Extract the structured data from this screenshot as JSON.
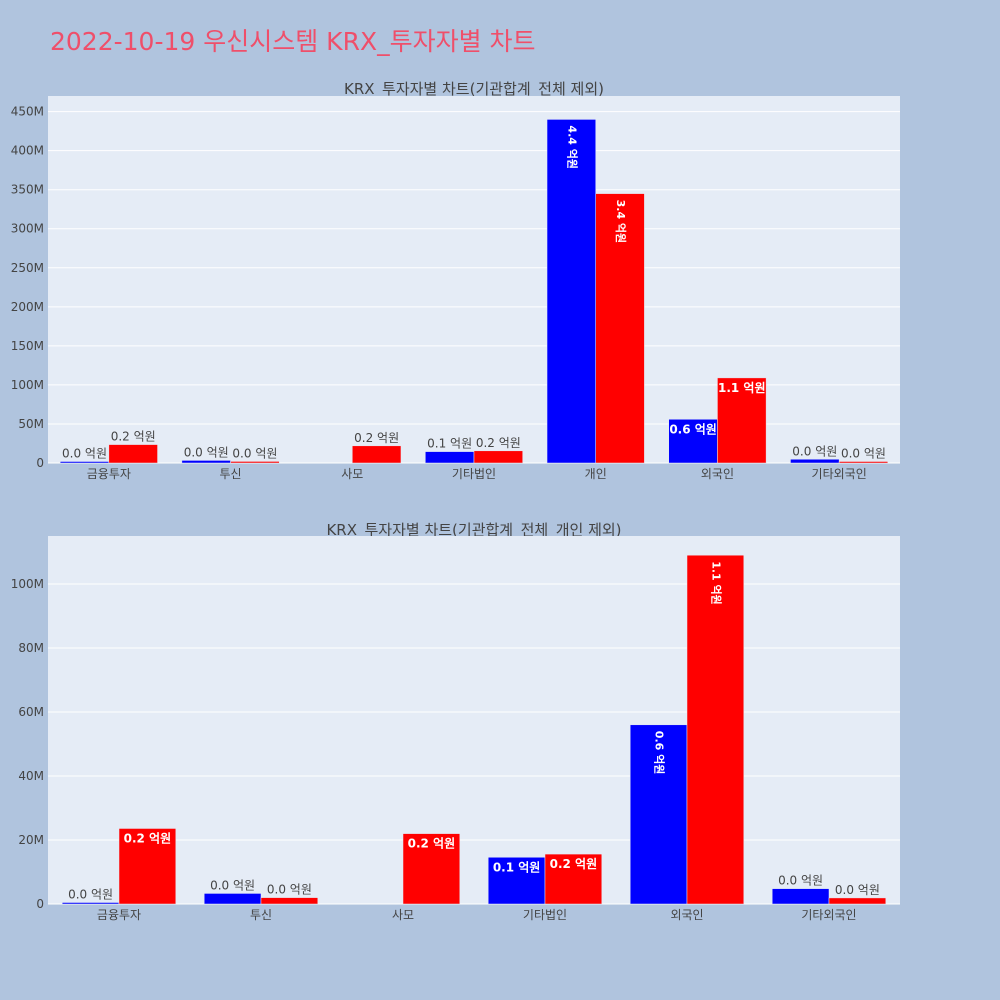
{
  "title": "2022-10-19 우신시스템 KRX_투자자별 차트",
  "colors": {
    "buy": "#0000ff",
    "sell": "#ff0000",
    "plot_bg": "#e5ecf6",
    "page_bg": "#b0c4de",
    "title": "#ef4f6a"
  },
  "chart_data": [
    {
      "type": "bar",
      "title": "KRX_투자자별 차트(기관합계_전체 제외)",
      "categories": [
        "금융투자",
        "투신",
        "사모",
        "기타법인",
        "개인",
        "외국인",
        "기타외국인"
      ],
      "series": [
        {
          "values": [
            0,
            3300000,
            null,
            14600000,
            440000000,
            56000000,
            4800000
          ],
          "labels": [
            "0.0 억원",
            "0.0 억원",
            "",
            "0.1 억원",
            "4.4 억원",
            "0.6 억원",
            "0.0 억원"
          ]
        },
        {
          "values": [
            23600000,
            2000000,
            22000000,
            15600000,
            345000000,
            109000000,
            1900000
          ],
          "labels": [
            "0.2 억원",
            "0.0 억원",
            "0.2 억원",
            "0.2 억원",
            "3.4 억원",
            "1.1 억원",
            "0.0 억원"
          ]
        }
      ],
      "ylim": [
        0,
        470000000
      ],
      "yticks": [
        0,
        50000000,
        100000000,
        150000000,
        200000000,
        250000000,
        300000000,
        350000000,
        400000000,
        450000000
      ],
      "ytick_labels": [
        "0",
        "50M",
        "100M",
        "150M",
        "200M",
        "250M",
        "300M",
        "350M",
        "400M",
        "450M"
      ]
    },
    {
      "type": "bar",
      "title": "KRX_투자자별 차트(기관합계_전체_개인 제외)",
      "categories": [
        "금융투자",
        "투신",
        "사모",
        "기타법인",
        "외국인",
        "기타외국인"
      ],
      "series": [
        {
          "values": [
            0,
            3300000,
            null,
            14600000,
            56000000,
            4800000
          ],
          "labels": [
            "0.0 억원",
            "0.0 억원",
            "",
            "0.1 억원",
            "0.6 억원",
            "0.0 억원"
          ]
        },
        {
          "values": [
            23600000,
            2000000,
            22000000,
            15600000,
            109000000,
            1900000
          ],
          "labels": [
            "0.2 억원",
            "0.0 억원",
            "0.2 억원",
            "0.2 억원",
            "1.1 억원",
            "0.0 억원"
          ]
        }
      ],
      "ylim": [
        0,
        115000000
      ],
      "yticks": [
        0,
        20000000,
        40000000,
        60000000,
        80000000,
        100000000
      ],
      "ytick_labels": [
        "0",
        "20M",
        "40M",
        "60M",
        "80M",
        "100M"
      ]
    }
  ]
}
